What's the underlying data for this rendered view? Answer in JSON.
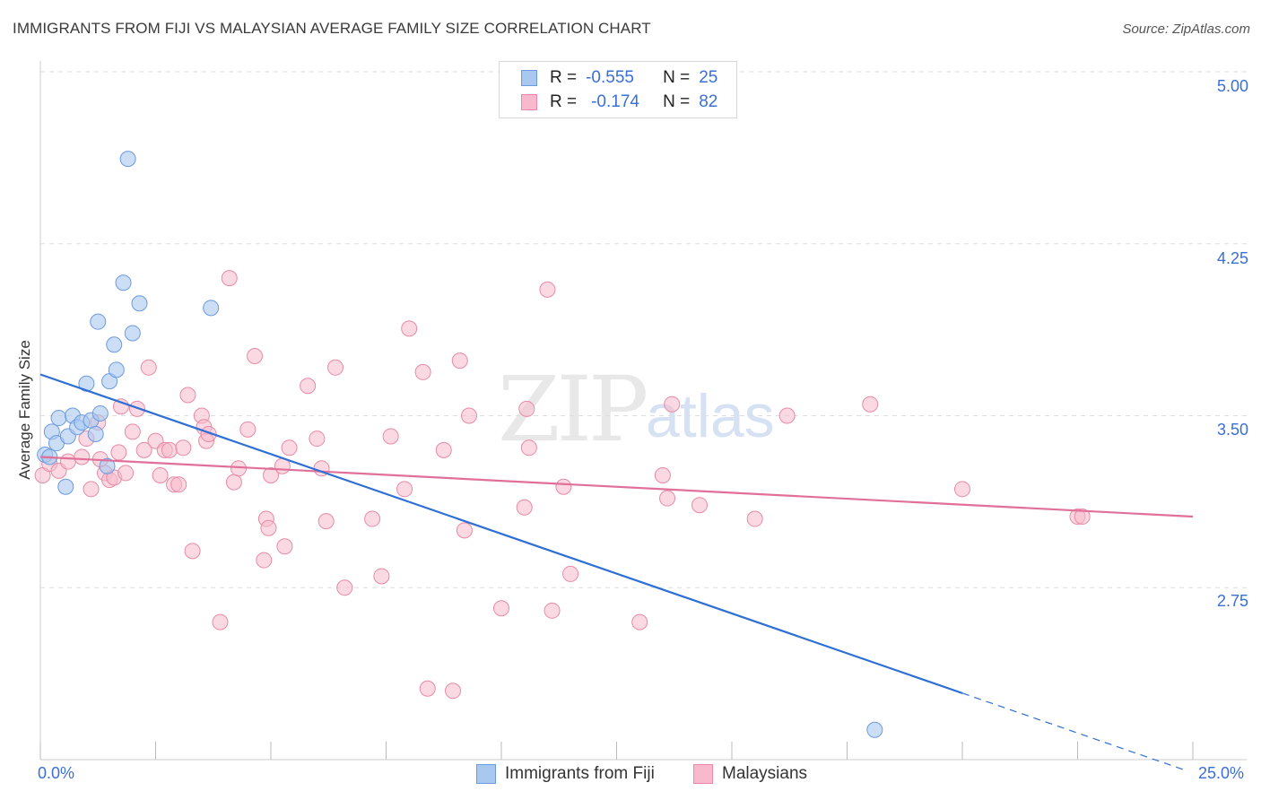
{
  "title": "IMMIGRANTS FROM FIJI VS MALAYSIAN AVERAGE FAMILY SIZE CORRELATION CHART",
  "source": "Source: ZipAtlas.com",
  "watermark": {
    "zip": "ZIP",
    "atlas": "atlas"
  },
  "legend": {
    "r_label": "R =",
    "n_label": "N =",
    "rows": [
      {
        "r": "-0.555",
        "n": "25"
      },
      {
        "r": "-0.174",
        "n": "82"
      }
    ]
  },
  "colors": {
    "fiji_fill": "#a9c8f0",
    "fiji_stroke": "#6b9ae0",
    "fiji_line": "#2e6fd4",
    "malay_fill": "#f7b9cb",
    "malay_stroke": "#e88aa6",
    "malay_line": "#e0709a",
    "grid": "#dddddd",
    "axis_text": "#3a6fd8"
  },
  "chart_data": {
    "type": "scatter",
    "title": "IMMIGRANTS FROM FIJI VS MALAYSIAN AVERAGE FAMILY SIZE CORRELATION CHART",
    "xlabel": "",
    "ylabel": "Average Family Size",
    "xlim": [
      0,
      25
    ],
    "ylim": [
      2.0,
      5.0
    ],
    "x_tick_labels": [
      "0.0%",
      "25.0%"
    ],
    "y_ticks": [
      2.75,
      3.5,
      4.25,
      5.0
    ],
    "y_tick_labels": [
      "2.75",
      "3.50",
      "4.25",
      "5.00"
    ],
    "grid": true,
    "legend_position": "top-center and bottom",
    "series": [
      {
        "name": "Immigrants from Fiji",
        "r": -0.555,
        "n": 25,
        "trend": {
          "x0": 0.0,
          "y0": 3.68,
          "x1": 20.0,
          "y1": 2.29,
          "dash_to_x": 24.8
        },
        "points": [
          [
            0.1,
            3.33
          ],
          [
            0.2,
            3.32
          ],
          [
            0.25,
            3.43
          ],
          [
            0.35,
            3.38
          ],
          [
            0.4,
            3.49
          ],
          [
            0.55,
            3.19
          ],
          [
            0.6,
            3.41
          ],
          [
            0.7,
            3.5
          ],
          [
            0.8,
            3.45
          ],
          [
            0.9,
            3.47
          ],
          [
            1.0,
            3.64
          ],
          [
            1.1,
            3.48
          ],
          [
            1.2,
            3.42
          ],
          [
            1.25,
            3.91
          ],
          [
            1.3,
            3.51
          ],
          [
            1.45,
            3.28
          ],
          [
            1.5,
            3.65
          ],
          [
            1.6,
            3.81
          ],
          [
            1.65,
            3.7
          ],
          [
            1.8,
            4.08
          ],
          [
            1.9,
            4.62
          ],
          [
            2.0,
            3.86
          ],
          [
            2.15,
            3.99
          ],
          [
            3.7,
            3.97
          ],
          [
            18.1,
            2.13
          ]
        ]
      },
      {
        "name": "Malaysians",
        "r": -0.174,
        "n": 82,
        "trend": {
          "x0": 0.0,
          "y0": 3.32,
          "x1": 25.0,
          "y1": 3.06
        },
        "points": [
          [
            0.05,
            3.24
          ],
          [
            0.2,
            3.29
          ],
          [
            0.4,
            3.26
          ],
          [
            0.6,
            3.3
          ],
          [
            0.9,
            3.32
          ],
          [
            1.0,
            3.4
          ],
          [
            1.1,
            3.18
          ],
          [
            1.25,
            3.47
          ],
          [
            1.3,
            3.31
          ],
          [
            1.4,
            3.25
          ],
          [
            1.5,
            3.22
          ],
          [
            1.6,
            3.23
          ],
          [
            1.7,
            3.34
          ],
          [
            1.75,
            3.54
          ],
          [
            1.85,
            3.25
          ],
          [
            2.0,
            3.43
          ],
          [
            2.1,
            3.53
          ],
          [
            2.25,
            3.35
          ],
          [
            2.35,
            3.71
          ],
          [
            2.5,
            3.39
          ],
          [
            2.6,
            3.24
          ],
          [
            2.7,
            3.35
          ],
          [
            2.8,
            3.35
          ],
          [
            2.9,
            3.2
          ],
          [
            3.0,
            3.2
          ],
          [
            3.1,
            3.36
          ],
          [
            3.2,
            3.59
          ],
          [
            3.3,
            2.91
          ],
          [
            3.5,
            3.5
          ],
          [
            3.55,
            3.45
          ],
          [
            3.6,
            3.39
          ],
          [
            3.65,
            3.42
          ],
          [
            3.9,
            2.6
          ],
          [
            4.1,
            4.1
          ],
          [
            4.2,
            3.21
          ],
          [
            4.3,
            3.27
          ],
          [
            4.5,
            3.44
          ],
          [
            4.65,
            3.76
          ],
          [
            4.85,
            2.87
          ],
          [
            4.9,
            3.05
          ],
          [
            4.95,
            3.01
          ],
          [
            5.0,
            3.24
          ],
          [
            5.25,
            3.28
          ],
          [
            5.3,
            2.93
          ],
          [
            5.4,
            3.36
          ],
          [
            5.8,
            3.63
          ],
          [
            6.0,
            3.4
          ],
          [
            6.1,
            3.27
          ],
          [
            6.2,
            3.04
          ],
          [
            6.4,
            3.71
          ],
          [
            6.6,
            2.75
          ],
          [
            7.2,
            3.05
          ],
          [
            7.4,
            2.8
          ],
          [
            7.6,
            3.41
          ],
          [
            7.9,
            3.18
          ],
          [
            8.0,
            3.88
          ],
          [
            8.3,
            3.69
          ],
          [
            8.4,
            2.31
          ],
          [
            8.75,
            3.35
          ],
          [
            8.95,
            2.3
          ],
          [
            9.1,
            3.74
          ],
          [
            9.2,
            3.0
          ],
          [
            9.3,
            3.5
          ],
          [
            10.0,
            2.66
          ],
          [
            10.5,
            3.1
          ],
          [
            10.55,
            3.53
          ],
          [
            10.6,
            3.36
          ],
          [
            11.0,
            4.05
          ],
          [
            11.1,
            2.65
          ],
          [
            11.35,
            3.19
          ],
          [
            11.5,
            2.81
          ],
          [
            13.0,
            2.6
          ],
          [
            13.5,
            3.24
          ],
          [
            13.6,
            3.14
          ],
          [
            13.7,
            3.55
          ],
          [
            14.3,
            3.11
          ],
          [
            15.5,
            3.05
          ],
          [
            16.2,
            3.5
          ],
          [
            18.0,
            3.55
          ],
          [
            20.0,
            3.18
          ],
          [
            22.5,
            3.06
          ],
          [
            22.6,
            3.06
          ]
        ]
      }
    ]
  }
}
